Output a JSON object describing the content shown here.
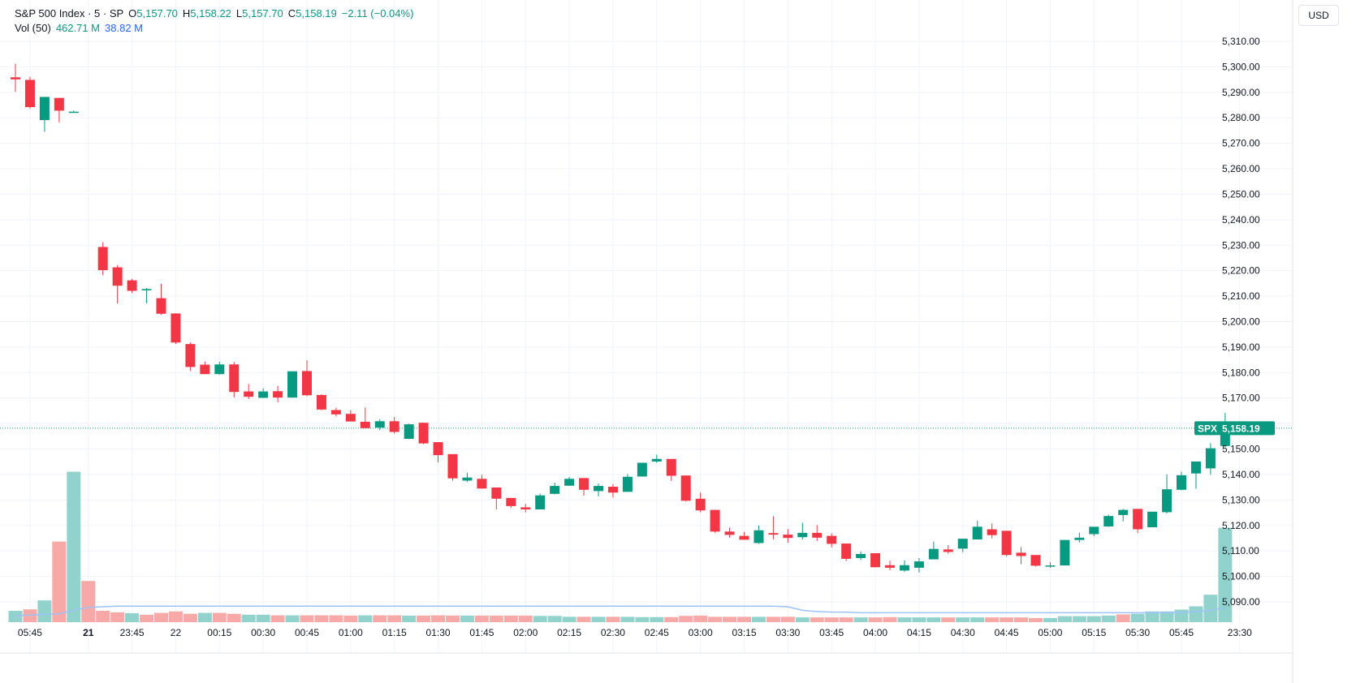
{
  "legend": {
    "symbol": "S&P 500 Index · 5 · SP",
    "open_label": "O",
    "open": "5,157.70",
    "high_label": "H",
    "high": "5,158.22",
    "low_label": "L",
    "low": "5,157.70",
    "close_label": "C",
    "close": "5,158.19",
    "change": "−2.11 (−0.04%)",
    "vol_label": "Vol (50)",
    "vol_value": "462.71 M",
    "vol_ma": "38.82 M"
  },
  "currency": "USD",
  "last_price": {
    "ticker": "SPX",
    "value": "5,158.19",
    "price": 5158.19
  },
  "colors": {
    "up": "#089981",
    "down": "#f23645",
    "vol_up": "#92d2cc",
    "vol_down": "#f7a9a7",
    "ma": "#9cc2f7",
    "grid": "#f0f3fa"
  },
  "chart_data": {
    "type": "candlestick",
    "price_ticks": [
      "5,310.00",
      "5,300.00",
      "5,290.00",
      "5,280.00",
      "5,270.00",
      "5,260.00",
      "5,250.00",
      "5,240.00",
      "5,230.00",
      "5,220.00",
      "5,210.00",
      "5,200.00",
      "5,190.00",
      "5,180.00",
      "5,170.00",
      "5,160.00",
      "5,150.00",
      "5,140.00",
      "5,130.00",
      "5,120.00",
      "5,110.00",
      "5,100.00",
      "5,090.00"
    ],
    "time_ticks": [
      {
        "label": "05:45",
        "bar": 1
      },
      {
        "label": "21",
        "bar": 5,
        "bold": true
      },
      {
        "label": "23:45",
        "bar": 8
      },
      {
        "label": "22",
        "bar": 11
      },
      {
        "label": "00:15",
        "bar": 14
      },
      {
        "label": "00:30",
        "bar": 17
      },
      {
        "label": "00:45",
        "bar": 20
      },
      {
        "label": "01:00",
        "bar": 23
      },
      {
        "label": "01:15",
        "bar": 26
      },
      {
        "label": "01:30",
        "bar": 29
      },
      {
        "label": "01:45",
        "bar": 32
      },
      {
        "label": "02:00",
        "bar": 35
      },
      {
        "label": "02:15",
        "bar": 38
      },
      {
        "label": "02:30",
        "bar": 41
      },
      {
        "label": "02:45",
        "bar": 44
      },
      {
        "label": "03:00",
        "bar": 47
      },
      {
        "label": "03:15",
        "bar": 50
      },
      {
        "label": "03:30",
        "bar": 53
      },
      {
        "label": "03:45",
        "bar": 56
      },
      {
        "label": "04:00",
        "bar": 59
      },
      {
        "label": "04:15",
        "bar": 62
      },
      {
        "label": "04:30",
        "bar": 65
      },
      {
        "label": "04:45",
        "bar": 68
      },
      {
        "label": "05:00",
        "bar": 71
      },
      {
        "label": "05:15",
        "bar": 74
      },
      {
        "label": "05:30",
        "bar": 77
      },
      {
        "label": "05:45",
        "bar": 80
      },
      {
        "label": "23:30",
        "bar": 84
      }
    ],
    "ohlc": [
      [
        5295.9,
        5301.2,
        5290.2,
        5295.1
      ],
      [
        5294.9,
        5296.1,
        5283.6,
        5284.2
      ],
      [
        5279.1,
        5288.2,
        5274.5,
        5288.2
      ],
      [
        5287.8,
        5287.8,
        5278.2,
        5282.8
      ],
      [
        5282.2,
        5282.9,
        5282.1,
        5282.4
      ],
      null,
      [
        5229.3,
        5231.2,
        5218.2,
        5220.2
      ],
      [
        5221.3,
        5222.2,
        5207.1,
        5214.1
      ],
      [
        5216.2,
        5216.8,
        5211.2,
        5212.1
      ],
      [
        5212.3,
        5213.2,
        5207.2,
        5212.8
      ],
      [
        5209.2,
        5214.8,
        5202.7,
        5203.1
      ],
      [
        5203.2,
        5203.3,
        5191.2,
        5191.8
      ],
      [
        5191.2,
        5191.8,
        5180.6,
        5182.2
      ],
      [
        5183.1,
        5184.3,
        5179.4,
        5179.4
      ],
      [
        5179.4,
        5184.2,
        5179.2,
        5183.2
      ],
      [
        5183.2,
        5184.2,
        5170.2,
        5172.4
      ],
      [
        5172.6,
        5175.5,
        5169.6,
        5170.5
      ],
      [
        5170.1,
        5173.8,
        5170.0,
        5172.6
      ],
      [
        5172.7,
        5174.8,
        5168.3,
        5170.2
      ],
      [
        5170.2,
        5180.5,
        5170.1,
        5180.5
      ],
      [
        5180.6,
        5184.8,
        5170.7,
        5171.1
      ],
      [
        5171.2,
        5171.5,
        5165.2,
        5165.5
      ],
      [
        5165.3,
        5166.2,
        5162.8,
        5163.6
      ],
      [
        5163.8,
        5165.3,
        5160.8,
        5160.8
      ],
      [
        5160.7,
        5166.3,
        5158.2,
        5158.2
      ],
      [
        5158.4,
        5161.7,
        5157.4,
        5160.9
      ],
      [
        5160.9,
        5162.6,
        5156.0,
        5156.7
      ],
      [
        5154.0,
        5159.9,
        5153.9,
        5159.7
      ],
      [
        5160.3,
        5160.3,
        5151.9,
        5152.2
      ],
      [
        5152.7,
        5152.7,
        5144.7,
        5147.6
      ],
      [
        5148.0,
        5148.0,
        5137.6,
        5138.5
      ],
      [
        5137.6,
        5140.7,
        5137.1,
        5138.8
      ],
      [
        5138.3,
        5139.9,
        5134.4,
        5134.5
      ],
      [
        5134.9,
        5134.9,
        5126.3,
        5130.5
      ],
      [
        5130.8,
        5130.8,
        5126.8,
        5127.6
      ],
      [
        5127.1,
        5128.5,
        5125.1,
        5126.3
      ],
      [
        5126.3,
        5132.5,
        5126.3,
        5131.8
      ],
      [
        5132.4,
        5136.8,
        5132.2,
        5135.5
      ],
      [
        5135.6,
        5139.0,
        5135.6,
        5138.3
      ],
      [
        5138.6,
        5138.6,
        5131.7,
        5134.0
      ],
      [
        5133.5,
        5136.5,
        5131.4,
        5135.5
      ],
      [
        5135.2,
        5136.3,
        5130.9,
        5132.9
      ],
      [
        5133.2,
        5140.2,
        5133.2,
        5139.1
      ],
      [
        5139.2,
        5144.6,
        5139.2,
        5144.6
      ],
      [
        5145.1,
        5147.8,
        5144.6,
        5146.1
      ],
      [
        5146.1,
        5146.1,
        5137.5,
        5139.5
      ],
      [
        5139.6,
        5139.6,
        5129.4,
        5129.7
      ],
      [
        5130.5,
        5132.9,
        5125.2,
        5125.9
      ],
      [
        5126.1,
        5126.1,
        5117.1,
        5117.6
      ],
      [
        5117.6,
        5119.2,
        5115.2,
        5116.3
      ],
      [
        5115.9,
        5117.5,
        5114.4,
        5114.4
      ],
      [
        5113.1,
        5120.0,
        5112.8,
        5118.1
      ],
      [
        5117.0,
        5123.6,
        5114.5,
        5116.4
      ],
      [
        5116.4,
        5118.6,
        5113.2,
        5115.1
      ],
      [
        5115.4,
        5121.0,
        5114.5,
        5117.1
      ],
      [
        5117.1,
        5120.1,
        5113.9,
        5115.2
      ],
      [
        5115.9,
        5116.9,
        5111.4,
        5112.8
      ],
      [
        5112.9,
        5112.9,
        5106.0,
        5106.9
      ],
      [
        5107.2,
        5109.8,
        5106.4,
        5108.8
      ],
      [
        5109.1,
        5109.1,
        5103.5,
        5103.6
      ],
      [
        5104.4,
        5106.2,
        5102.4,
        5103.4
      ],
      [
        5102.3,
        5106.3,
        5101.8,
        5104.4
      ],
      [
        5103.4,
        5107.2,
        5101.5,
        5105.9
      ],
      [
        5106.7,
        5113.7,
        5106.7,
        5110.8
      ],
      [
        5110.6,
        5112.3,
        5108.9,
        5109.6
      ],
      [
        5110.9,
        5112.8,
        5109.5,
        5114.8
      ],
      [
        5114.5,
        5121.9,
        5114.5,
        5119.5
      ],
      [
        5118.5,
        5120.8,
        5114.9,
        5116.2
      ],
      [
        5117.9,
        5117.9,
        5107.8,
        5108.4
      ],
      [
        5109.3,
        5111.5,
        5104.8,
        5108.0
      ],
      [
        5108.4,
        5108.4,
        5103.9,
        5104.2
      ],
      [
        5104.3,
        5105.6,
        5103.4,
        5104.3
      ],
      [
        5104.3,
        5114.3,
        5104.3,
        5114.3
      ],
      [
        5114.3,
        5117.2,
        5113.3,
        5115.2
      ],
      [
        5116.6,
        5118.8,
        5115.8,
        5119.5
      ],
      [
        5119.6,
        5124.2,
        5119.4,
        5123.7
      ],
      [
        5124.1,
        5126.5,
        5121.6,
        5126.1
      ],
      [
        5126.5,
        5126.5,
        5117.1,
        5118.5
      ],
      [
        5119.3,
        5125.4,
        5119.3,
        5125.4
      ],
      [
        5125.2,
        5140.1,
        5124.7,
        5134.2
      ],
      [
        5134.0,
        5141.1,
        5133.8,
        5139.7
      ],
      [
        5140.4,
        5143.9,
        5134.4,
        5145.1
      ],
      [
        5142.4,
        5152.3,
        5139.9,
        5150.3
      ],
      [
        5151.2,
        5164.2,
        5150.6,
        5160.0
      ],
      [
        5157.7,
        5158.2,
        5157.7,
        5158.2
      ]
    ],
    "volume": [
      {
        "v": 38,
        "up": true
      },
      {
        "v": 43,
        "up": false
      },
      {
        "v": 73,
        "up": true
      },
      {
        "v": 270,
        "up": false
      },
      {
        "v": 504,
        "up": true
      },
      {
        "v": 138,
        "up": false
      },
      {
        "v": 38,
        "up": false
      },
      {
        "v": 33,
        "up": false
      },
      {
        "v": 30,
        "up": true
      },
      {
        "v": 25,
        "up": false
      },
      {
        "v": 31,
        "up": false
      },
      {
        "v": 36,
        "up": false
      },
      {
        "v": 28,
        "up": false
      },
      {
        "v": 31,
        "up": true
      },
      {
        "v": 31,
        "up": false
      },
      {
        "v": 28,
        "up": false
      },
      {
        "v": 25,
        "up": true
      },
      {
        "v": 25,
        "up": true
      },
      {
        "v": 23,
        "up": false
      },
      {
        "v": 23,
        "up": true
      },
      {
        "v": 23,
        "up": false
      },
      {
        "v": 23,
        "up": false
      },
      {
        "v": 23,
        "up": false
      },
      {
        "v": 22,
        "up": false
      },
      {
        "v": 23,
        "up": true
      },
      {
        "v": 23,
        "up": false
      },
      {
        "v": 23,
        "up": false
      },
      {
        "v": 22,
        "up": true
      },
      {
        "v": 22,
        "up": false
      },
      {
        "v": 23,
        "up": false
      },
      {
        "v": 22,
        "up": false
      },
      {
        "v": 22,
        "up": true
      },
      {
        "v": 22,
        "up": false
      },
      {
        "v": 22,
        "up": false
      },
      {
        "v": 22,
        "up": false
      },
      {
        "v": 22,
        "up": false
      },
      {
        "v": 21,
        "up": true
      },
      {
        "v": 21,
        "up": true
      },
      {
        "v": 18,
        "up": true
      },
      {
        "v": 18,
        "up": false
      },
      {
        "v": 18,
        "up": true
      },
      {
        "v": 18,
        "up": false
      },
      {
        "v": 18,
        "up": true
      },
      {
        "v": 17,
        "up": true
      },
      {
        "v": 17,
        "up": true
      },
      {
        "v": 17,
        "up": false
      },
      {
        "v": 21,
        "up": false
      },
      {
        "v": 22,
        "up": false
      },
      {
        "v": 18,
        "up": false
      },
      {
        "v": 18,
        "up": false
      },
      {
        "v": 18,
        "up": false
      },
      {
        "v": 18,
        "up": true
      },
      {
        "v": 18,
        "up": false
      },
      {
        "v": 18,
        "up": false
      },
      {
        "v": 16,
        "up": true
      },
      {
        "v": 16,
        "up": false
      },
      {
        "v": 16,
        "up": false
      },
      {
        "v": 16,
        "up": false
      },
      {
        "v": 16,
        "up": true
      },
      {
        "v": 16,
        "up": false
      },
      {
        "v": 17,
        "up": false
      },
      {
        "v": 16,
        "up": true
      },
      {
        "v": 16,
        "up": true
      },
      {
        "v": 16,
        "up": true
      },
      {
        "v": 16,
        "up": false
      },
      {
        "v": 16,
        "up": true
      },
      {
        "v": 16,
        "up": true
      },
      {
        "v": 16,
        "up": false
      },
      {
        "v": 16,
        "up": false
      },
      {
        "v": 16,
        "up": false
      },
      {
        "v": 14,
        "up": false
      },
      {
        "v": 14,
        "up": true
      },
      {
        "v": 20,
        "up": true
      },
      {
        "v": 20,
        "up": true
      },
      {
        "v": 20,
        "up": true
      },
      {
        "v": 22,
        "up": true
      },
      {
        "v": 26,
        "up": false
      },
      {
        "v": 28,
        "up": true
      },
      {
        "v": 36,
        "up": true
      },
      {
        "v": 36,
        "up": true
      },
      {
        "v": 42,
        "up": true
      },
      {
        "v": 53,
        "up": true
      },
      {
        "v": 92,
        "up": true
      },
      {
        "v": 316,
        "up": true
      }
    ],
    "volume_ma": [
      11,
      12,
      13,
      14,
      20,
      25,
      26,
      27,
      27,
      27,
      27,
      27,
      27,
      27,
      27,
      27,
      27,
      27,
      27,
      27,
      27,
      27,
      27,
      27,
      27,
      27,
      27,
      27,
      27,
      27,
      27,
      27,
      27,
      27,
      27,
      27,
      27,
      27,
      27,
      27,
      27,
      27,
      27,
      27,
      27,
      27,
      27,
      27,
      27,
      27,
      27,
      27,
      27,
      26,
      20,
      18,
      17,
      17,
      16,
      16,
      16,
      16,
      16,
      16,
      16,
      16,
      16,
      16,
      16,
      16,
      16,
      16,
      16,
      16,
      16,
      16,
      16,
      16,
      16,
      16,
      16,
      18,
      20,
      24
    ],
    "y_range": [
      5081.0,
      5318.0
    ],
    "grid": true
  }
}
